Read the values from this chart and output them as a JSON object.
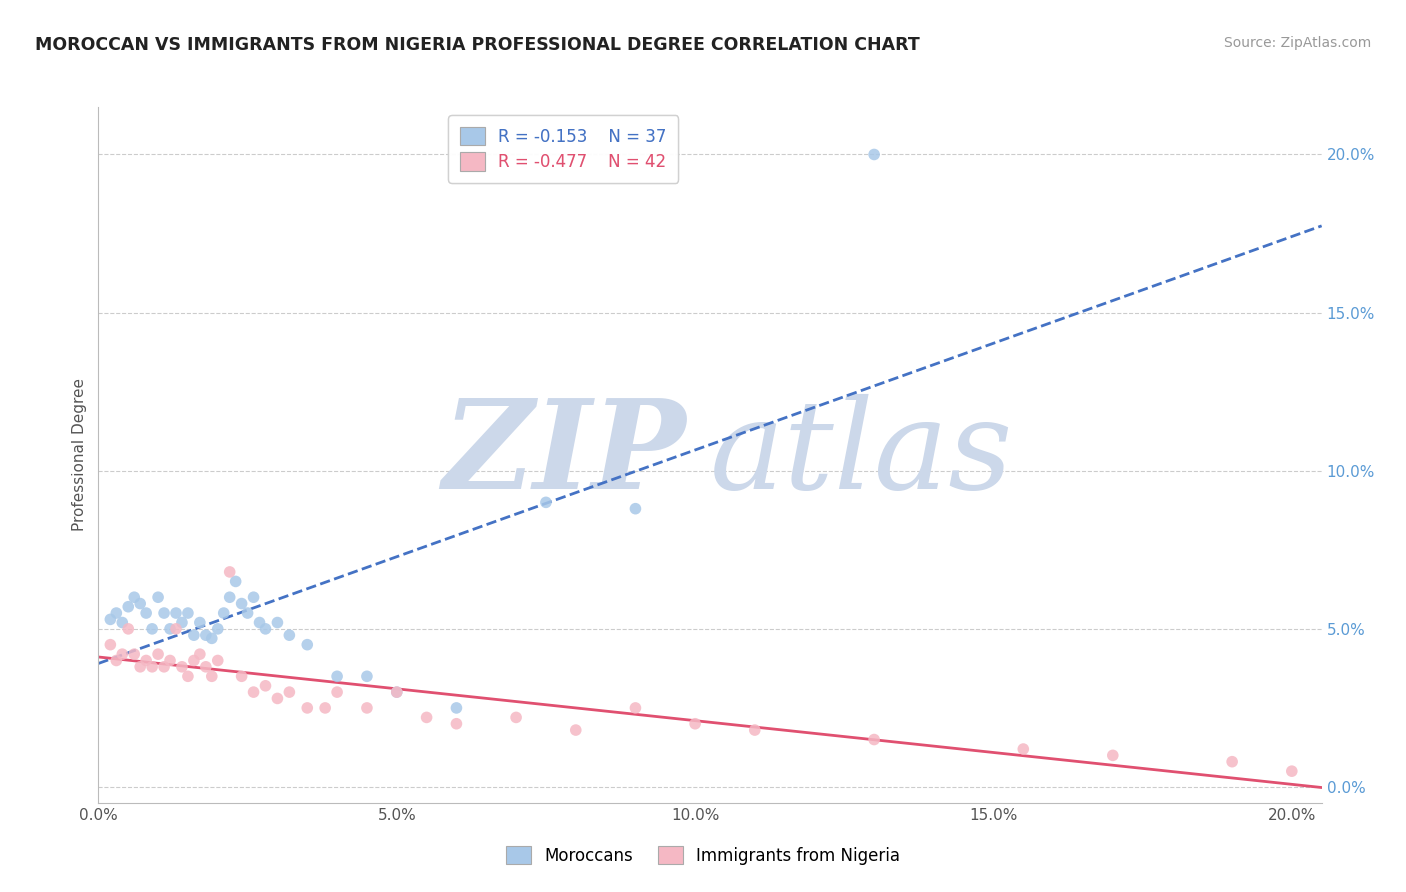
{
  "title": "MOROCCAN VS IMMIGRANTS FROM NIGERIA PROFESSIONAL DEGREE CORRELATION CHART",
  "source": "Source: ZipAtlas.com",
  "xlabel_vals": [
    0.0,
    0.05,
    0.1,
    0.15,
    0.2
  ],
  "ylabel": "Professional Degree",
  "ylabel_vals": [
    0.0,
    0.05,
    0.1,
    0.15,
    0.2
  ],
  "xlim": [
    0.0,
    0.205
  ],
  "ylim": [
    -0.005,
    0.215
  ],
  "moroccan_R": -0.153,
  "moroccan_N": 37,
  "nigeria_R": -0.477,
  "nigeria_N": 42,
  "moroccan_color": "#a8c8e8",
  "nigeria_color": "#f5b8c4",
  "moroccan_line_color": "#4472c4",
  "nigeria_line_color": "#e05070",
  "watermark_zip": "ZIP",
  "watermark_atlas": "atlas",
  "watermark_color": "#ccd8ea",
  "legend_moroccan_label": "Moroccans",
  "legend_nigeria_label": "Immigrants from Nigeria",
  "moroccan_x": [
    0.002,
    0.003,
    0.004,
    0.005,
    0.006,
    0.007,
    0.008,
    0.009,
    0.01,
    0.011,
    0.012,
    0.013,
    0.014,
    0.015,
    0.016,
    0.017,
    0.018,
    0.019,
    0.02,
    0.021,
    0.022,
    0.023,
    0.024,
    0.025,
    0.026,
    0.027,
    0.028,
    0.03,
    0.032,
    0.035,
    0.04,
    0.045,
    0.05,
    0.06,
    0.075,
    0.09,
    0.13
  ],
  "moroccan_y": [
    0.053,
    0.055,
    0.052,
    0.057,
    0.06,
    0.058,
    0.055,
    0.05,
    0.06,
    0.055,
    0.05,
    0.055,
    0.052,
    0.055,
    0.048,
    0.052,
    0.048,
    0.047,
    0.05,
    0.055,
    0.06,
    0.065,
    0.058,
    0.055,
    0.06,
    0.052,
    0.05,
    0.052,
    0.048,
    0.045,
    0.035,
    0.035,
    0.03,
    0.025,
    0.09,
    0.088,
    0.2
  ],
  "nigeria_x": [
    0.002,
    0.003,
    0.004,
    0.005,
    0.006,
    0.007,
    0.008,
    0.009,
    0.01,
    0.011,
    0.012,
    0.013,
    0.014,
    0.015,
    0.016,
    0.017,
    0.018,
    0.019,
    0.02,
    0.022,
    0.024,
    0.026,
    0.028,
    0.03,
    0.032,
    0.035,
    0.038,
    0.04,
    0.045,
    0.05,
    0.055,
    0.06,
    0.07,
    0.08,
    0.09,
    0.1,
    0.11,
    0.13,
    0.155,
    0.17,
    0.19,
    0.2
  ],
  "nigeria_y": [
    0.045,
    0.04,
    0.042,
    0.05,
    0.042,
    0.038,
    0.04,
    0.038,
    0.042,
    0.038,
    0.04,
    0.05,
    0.038,
    0.035,
    0.04,
    0.042,
    0.038,
    0.035,
    0.04,
    0.068,
    0.035,
    0.03,
    0.032,
    0.028,
    0.03,
    0.025,
    0.025,
    0.03,
    0.025,
    0.03,
    0.022,
    0.02,
    0.022,
    0.018,
    0.025,
    0.02,
    0.018,
    0.015,
    0.012,
    0.01,
    0.008,
    0.005
  ]
}
